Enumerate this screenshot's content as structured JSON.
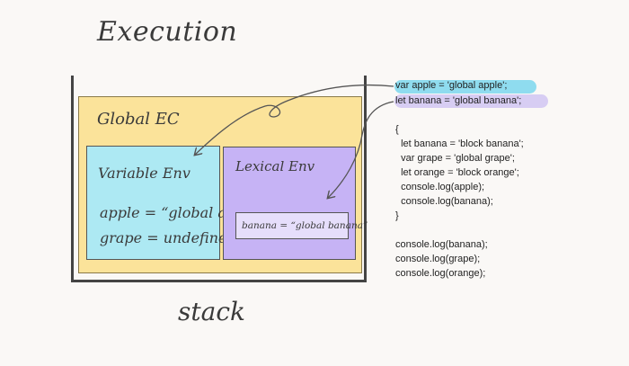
{
  "title": "Execution",
  "stack_label": "stack",
  "global_ec": {
    "label": "Global EC"
  },
  "variable_env": {
    "label": "Variable Env",
    "apple": "apple = “global apple”",
    "grape": "grape = undefined"
  },
  "lexical_env": {
    "label": "Lexical Env",
    "banana": "banana = “global banana”"
  },
  "code_lines": [
    "var apple = 'global apple';",
    "let banana = 'global banana';",
    "",
    "{",
    "  let banana = 'block banana';",
    "  var grape = 'global grape';",
    "  let orange = 'block orange';",
    "  console.log(apple);",
    "  console.log(banana);",
    "}",
    "",
    "console.log(banana);",
    "console.log(grape);",
    "console.log(orange);"
  ],
  "colors": {
    "global_ec": "#fbe39a",
    "variable_env": "#ade9f3",
    "lexical_env": "#c6b3f5",
    "highlight_var": "#8fdcef",
    "highlight_let": "#d7cdf3"
  }
}
